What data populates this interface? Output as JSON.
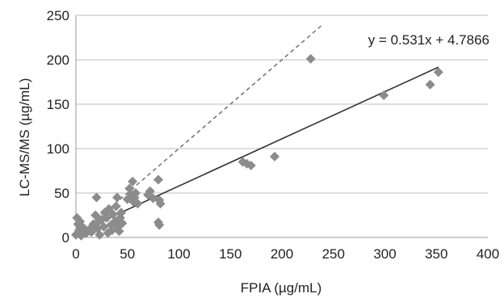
{
  "chart_data": {
    "type": "scatter",
    "xlabel": "FPIA (µg/mL)",
    "ylabel": "LC-MS/MS (µg/mL)",
    "xlim": [
      0,
      400
    ],
    "ylim": [
      0,
      250
    ],
    "xticks": [
      0,
      50,
      100,
      150,
      200,
      250,
      300,
      350,
      400
    ],
    "yticks": [
      0,
      50,
      100,
      150,
      200,
      250
    ],
    "grid": "horizontal",
    "legend": "none",
    "annotation": "y = 0.531x + 4.7866",
    "points": [
      [
        0,
        3
      ],
      [
        1,
        22
      ],
      [
        2,
        15
      ],
      [
        3,
        8
      ],
      [
        4,
        18
      ],
      [
        5,
        2
      ],
      [
        6,
        12
      ],
      [
        8,
        10
      ],
      [
        10,
        5
      ],
      [
        13,
        9
      ],
      [
        15,
        6
      ],
      [
        17,
        15
      ],
      [
        19,
        25
      ],
      [
        20,
        45
      ],
      [
        21,
        10
      ],
      [
        22,
        18
      ],
      [
        23,
        3
      ],
      [
        25,
        20
      ],
      [
        27,
        12
      ],
      [
        28,
        28
      ],
      [
        30,
        22
      ],
      [
        31,
        5
      ],
      [
        32,
        32
      ],
      [
        34,
        14
      ],
      [
        35,
        8
      ],
      [
        36,
        26
      ],
      [
        38,
        18
      ],
      [
        39,
        35
      ],
      [
        40,
        45
      ],
      [
        41,
        12
      ],
      [
        42,
        7
      ],
      [
        43,
        22
      ],
      [
        44,
        28
      ],
      [
        45,
        16
      ],
      [
        50,
        43
      ],
      [
        52,
        55
      ],
      [
        54,
        48
      ],
      [
        55,
        63
      ],
      [
        56,
        40
      ],
      [
        57,
        45
      ],
      [
        58,
        50
      ],
      [
        60,
        38
      ],
      [
        70,
        48
      ],
      [
        72,
        52
      ],
      [
        75,
        44
      ],
      [
        80,
        65
      ],
      [
        81,
        42
      ],
      [
        82,
        38
      ],
      [
        80,
        17
      ],
      [
        81,
        14
      ],
      [
        162,
        85
      ],
      [
        166,
        83
      ],
      [
        170,
        81
      ],
      [
        193,
        91
      ],
      [
        228,
        201
      ],
      [
        299,
        160
      ],
      [
        344,
        172
      ],
      [
        352,
        186
      ]
    ],
    "series": [
      {
        "type": "regression",
        "slope": 0.531,
        "intercept": 4.7866,
        "x_range": [
          0,
          352
        ],
        "style": "solid",
        "color": "#333333"
      },
      {
        "type": "identity",
        "slope": 1,
        "intercept": 0,
        "x_range": [
          0,
          240
        ],
        "style": "dashed",
        "color": "#777777"
      }
    ],
    "colors": {
      "marker": "#8c8c8c",
      "grid": "#bdbdbd",
      "axis": "#9a9a9a"
    }
  }
}
